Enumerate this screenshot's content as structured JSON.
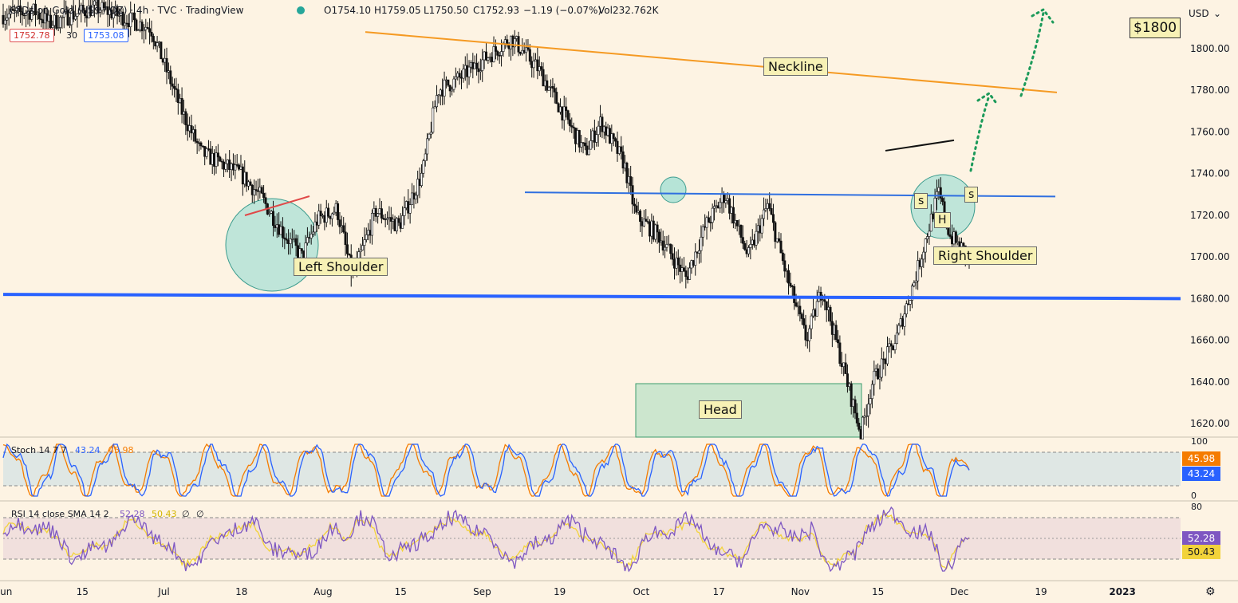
{
  "header": {
    "symbol": "CFDs on Gold (US$ / OZ) · 4h · TVC · TradingView",
    "open": "O1754.10",
    "high": "H1759.05",
    "low": "L1750.50",
    "close": "C1752.93",
    "change": "−1.19 (−0.07%)",
    "volume": "Vol232.762K",
    "bid": "1752.78",
    "spread": "30",
    "ask": "1753.08",
    "currency": "USD"
  },
  "annotations": {
    "target": "$1800",
    "neckline": "Neckline",
    "left_shoulder": "Left Shoulder",
    "head": "Head",
    "right_shoulder": "Right Shoulder",
    "s1": "s",
    "h": "H",
    "s2": "s"
  },
  "colors": {
    "background": "#fdf3e3",
    "candle": "#111111",
    "neckline": "#f59a23",
    "support": "#2962ff",
    "blue_thin": "#2f6fe0",
    "stoch_k": "#2962ff",
    "stoch_d": "#f57c00",
    "rsi": "#7e57c2",
    "rsi_sma": "#f2d33a",
    "circle_fill": "#a9e0d5",
    "arrow": "#1c9a5a"
  },
  "chart_data": [
    {
      "type": "line",
      "title": "CFDs on Gold (US$ / OZ) · 4h · TVC · TradingView",
      "x_ticks": [
        "Jun",
        "15",
        "Jul",
        "18",
        "Aug",
        "15",
        "Sep",
        "19",
        "Oct",
        "17",
        "Nov",
        "15",
        "Dec",
        "19",
        "2023"
      ],
      "y_ticks": [
        1620,
        1640,
        1660,
        1680,
        1700,
        1720,
        1740,
        1760,
        1780,
        1800
      ],
      "ylim": [
        1612,
        1820
      ],
      "ylabel": "USD",
      "grid": false,
      "series": [
        {
          "x": [
            -0.2,
            0.4,
            0.6,
            0.8,
            1.2,
            1.55,
            1.9,
            2.1,
            2.3,
            2.55,
            3.05,
            3.3,
            3.6,
            3.85,
            4.05,
            4.3,
            4.5,
            4.8,
            5.1,
            5.4,
            5.6,
            5.85,
            6.2,
            6.55,
            6.9,
            7.2,
            7.5,
            7.7,
            8.0,
            8.15,
            8.45,
            8.8,
            9.05,
            9.3,
            9.6,
            9.85,
            10.1,
            10.35,
            10.55,
            10.8,
            11.05,
            11.2,
            11.5,
            11.75,
            12.05,
            12.2,
            12.45,
            12.75,
            12.95,
            13.1,
            13.4,
            13.65,
            13.85,
            13.95,
            14.1,
            14.3,
            14.45,
            14.65,
            14.8,
            15.1,
            15.4,
            15.6,
            15.8,
            16.05,
            16.2,
            16.4,
            16.55,
            16.75,
            16.95,
            17.3,
            17.55
          ],
          "y": [
            1815,
            1818,
            1812,
            1815,
            1820,
            1815,
            1810,
            1790,
            1770,
            1750,
            1740,
            1730,
            1712,
            1700,
            1718,
            1723,
            1690,
            1722,
            1715,
            1740,
            1780,
            1785,
            1795,
            1805,
            1790,
            1770,
            1750,
            1765,
            1745,
            1720,
            1710,
            1690,
            1715,
            1730,
            1700,
            1725,
            1690,
            1660,
            1685,
            1650,
            1615,
            1640,
            1660,
            1690,
            1731,
            1710,
            1700,
            1670,
            1655,
            1672,
            1660,
            1645,
            1623,
            1658,
            1660,
            1672,
            1660,
            1645,
            1632,
            1650,
            1636,
            1617,
            1655,
            1680,
            1712,
            1730,
            1760,
            1785,
            1780,
            1750,
            1760
          ],
          "ohlc": {
            "open": 1754.1,
            "high": 1759.05,
            "low": 1750.5,
            "close": 1752.93
          }
        }
      ],
      "levels": [
        {
          "name": "neckline",
          "y_start": 1808,
          "y_end": 1779
        },
        {
          "name": "support",
          "y_start": 1682,
          "y_end": 1680
        },
        {
          "name": "resistance",
          "y_start": 1731,
          "y_end": 1729
        },
        {
          "name": "mini_neck",
          "y_start": 1751,
          "y_end": 1756
        }
      ]
    },
    {
      "type": "line",
      "title": "Stoch 14 7 7",
      "legend": [
        "43.24",
        "45.98"
      ],
      "ylim": [
        0,
        100
      ],
      "y_ticks": [
        0,
        100
      ],
      "series": [
        {
          "name": "%K",
          "last": 43.24
        },
        {
          "name": "%D",
          "last": 45.98
        }
      ]
    },
    {
      "type": "line",
      "title": "RSI 14 close SMA 14 2",
      "legend": [
        "52.28",
        "50.43",
        "∅",
        "∅"
      ],
      "ylim": [
        20,
        80
      ],
      "y_ticks": [
        80
      ],
      "series": [
        {
          "name": "RSI",
          "last": 52.28
        },
        {
          "name": "SMA",
          "last": 50.43
        }
      ]
    }
  ]
}
